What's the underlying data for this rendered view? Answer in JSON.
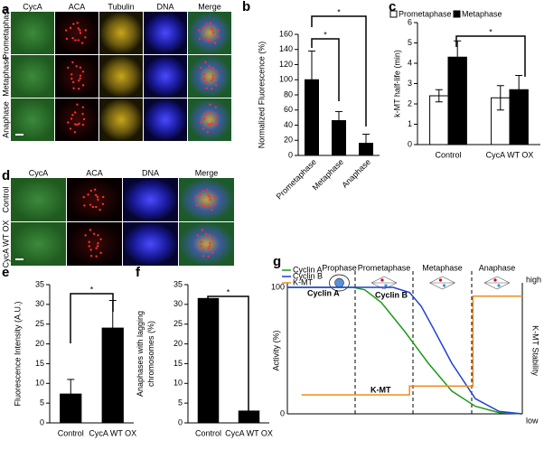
{
  "panels": {
    "a": {
      "label": "a",
      "columns": [
        "CycA",
        "ACA",
        "Tubulin",
        "DNA",
        "Merge"
      ],
      "rows": [
        "Prometaphase",
        "Metaphase",
        "Anaphase"
      ]
    },
    "d": {
      "label": "d",
      "columns": [
        "CycA",
        "ACA",
        "DNA",
        "Merge"
      ],
      "rows": [
        "Control",
        "CycA WT OX"
      ]
    }
  },
  "chart_data": [
    {
      "type": "bar",
      "label": "b",
      "ylabel": "Normalized Fluorescence (%)",
      "categories": [
        "Prometaphase",
        "Metaphase",
        "Anaphase"
      ],
      "values": [
        100,
        46,
        16
      ],
      "errors": [
        38,
        12,
        12
      ],
      "color": "#000000",
      "ylim": [
        0,
        160
      ],
      "yticks": [
        0,
        20,
        40,
        60,
        80,
        100,
        120,
        140,
        160
      ],
      "annotations": [
        "*",
        "*"
      ]
    },
    {
      "type": "grouped_bar",
      "label": "c",
      "ylabel": "k-MT half-life (min)",
      "categories": [
        "Control",
        "CycA WT OX"
      ],
      "series": [
        {
          "name": "Prometaphase",
          "color": "#ffffff",
          "values": [
            2.4,
            2.3
          ],
          "errors": [
            0.3,
            0.6
          ]
        },
        {
          "name": "Metaphase",
          "color": "#000000",
          "values": [
            4.3,
            2.7
          ],
          "errors": [
            0.8,
            0.7
          ]
        }
      ],
      "ylim": [
        0,
        6
      ],
      "yticks": [
        0,
        1,
        2,
        3,
        4,
        5,
        6
      ],
      "annotations": [
        "*"
      ]
    },
    {
      "type": "bar",
      "label": "e",
      "ylabel": "Fluorescence Intensity (A.U.)",
      "categories": [
        "Control",
        "CycA WT OX"
      ],
      "values": [
        7.3,
        24
      ],
      "errors": [
        3.7,
        7
      ],
      "color": "#000000",
      "ylim": [
        0,
        35
      ],
      "yticks": [
        0,
        5,
        10,
        15,
        20,
        25,
        30,
        35
      ],
      "annotations": [
        "*"
      ]
    },
    {
      "type": "bar",
      "label": "f",
      "ylabel": [
        "Anaphases with lagging",
        "chromosomes (%)"
      ],
      "categories": [
        "Control",
        "CycA WT OX"
      ],
      "values": [
        31.5,
        3
      ],
      "color": "#000000",
      "ylim": [
        0,
        35
      ],
      "yticks": [
        0,
        5,
        10,
        15,
        20,
        25,
        30,
        35
      ],
      "annotations": [
        "*"
      ]
    },
    {
      "type": "line",
      "label": "g",
      "ylabel": "Activity (%)",
      "y2label": "K-MT Stability",
      "phases": [
        "Prophase",
        "Prometaphase",
        "Metaphase",
        "Anaphase"
      ],
      "xlim": [
        0,
        100
      ],
      "ylim": [
        0,
        100
      ],
      "yticks": [
        0,
        100
      ],
      "y2lim": [
        0,
        100
      ],
      "y2ticks": [
        {
          "value": 0,
          "label": "low"
        },
        {
          "value": 100,
          "label": "high"
        }
      ],
      "series": [
        {
          "name": "Cyclin A",
          "color": "#1a9a1a",
          "x": [
            0,
            28,
            33,
            40,
            50,
            60,
            70,
            80,
            90,
            100
          ],
          "values": [
            100,
            100,
            98,
            88,
            65,
            40,
            18,
            6,
            1,
            0
          ]
        },
        {
          "name": "Cyclin B",
          "color": "#1f3fd6",
          "x": [
            0,
            45,
            52,
            57,
            62,
            70,
            80,
            90,
            100
          ],
          "values": [
            100,
            100,
            96,
            85,
            68,
            40,
            12,
            2,
            0
          ]
        },
        {
          "name": "K-MT",
          "color": "#f28a1e",
          "x": [
            6,
            52,
            52,
            79,
            79,
            100
          ],
          "values": [
            15,
            15,
            22,
            22,
            93,
            93
          ],
          "axis": "y2"
        }
      ]
    }
  ]
}
